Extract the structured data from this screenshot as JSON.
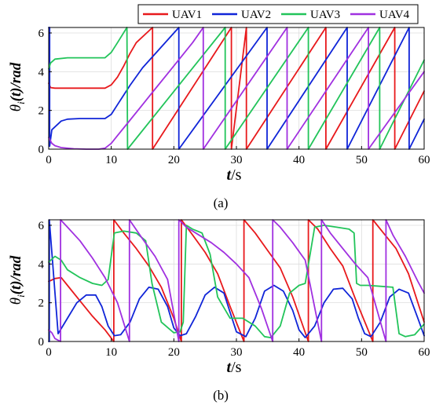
{
  "figure": {
    "legend": [
      {
        "name": "UAV1",
        "color": "#e8191c"
      },
      {
        "name": "UAV2",
        "color": "#1025d8"
      },
      {
        "name": "UAV3",
        "color": "#22c45a"
      },
      {
        "name": "UAV4",
        "color": "#a030e0"
      }
    ]
  },
  "chart_data": [
    {
      "type": "line",
      "panel_label": "(a)",
      "xlabel_italic": "t",
      "xlabel_unit": "/s",
      "ylabel_main": "θ",
      "ylabel_sub": "i",
      "ylabel_rest": "(t)/rad",
      "xlim": [
        0,
        60
      ],
      "ylim": [
        0,
        6.283
      ],
      "xticks": [
        "0",
        "10",
        "20",
        "30",
        "40",
        "50",
        "60"
      ],
      "yticks": [
        "0",
        "2",
        "4",
        "6"
      ],
      "grid": true,
      "legend_position": "top-right, outside",
      "series": [
        {
          "name": "UAV1",
          "color": "#e8191c",
          "x": [
            0,
            0.3,
            1,
            9,
            10,
            11,
            12,
            13,
            14,
            16.6,
            16.6,
            29.2,
            29.2,
            31.6,
            31.6,
            44.3,
            44.3,
            55.3,
            55.3,
            60
          ],
          "y": [
            3.4,
            3.18,
            3.15,
            3.15,
            3.32,
            3.72,
            4.3,
            4.95,
            5.5,
            6.283,
            0,
            6.283,
            0,
            6.283,
            0,
            6.283,
            0,
            6.283,
            0,
            3.0
          ]
        },
        {
          "name": "UAV2",
          "color": "#1025d8",
          "x": [
            0,
            0.15,
            0.15,
            0.5,
            2,
            3,
            5,
            9,
            10,
            11,
            13,
            15,
            20.8,
            20.8,
            34.9,
            34.9,
            47.7,
            47.7,
            57.6,
            57.6,
            60
          ],
          "y": [
            6.283,
            6.283,
            0.15,
            1.0,
            1.45,
            1.55,
            1.58,
            1.58,
            1.8,
            2.3,
            3.3,
            4.2,
            6.283,
            0,
            6.283,
            0,
            6.283,
            0,
            6.283,
            0,
            1.55
          ]
        },
        {
          "name": "UAV3",
          "color": "#22c45a",
          "x": [
            0,
            0.3,
            1,
            3,
            9,
            10,
            11,
            12.5,
            12.6,
            28.2,
            28.2,
            41.5,
            41.5,
            52.9,
            52.9,
            60
          ],
          "y": [
            4.15,
            4.45,
            4.65,
            4.72,
            4.72,
            5.0,
            5.5,
            6.283,
            0,
            6.283,
            0,
            6.283,
            0,
            6.283,
            0,
            4.6
          ]
        },
        {
          "name": "UAV4",
          "color": "#a030e0",
          "x": [
            0,
            0.5,
            1,
            2,
            4,
            6,
            8,
            9,
            10,
            11,
            13,
            15,
            17,
            19,
            21,
            23,
            24.7,
            24.7,
            38.1,
            38.1,
            51.1,
            51.1,
            60
          ],
          "y": [
            0.6,
            0.3,
            0.18,
            0.08,
            0.02,
            0,
            0,
            0.05,
            0.3,
            0.7,
            1.5,
            2.3,
            3.1,
            3.9,
            4.7,
            5.5,
            6.283,
            0,
            6.283,
            0,
            6.283,
            0,
            4.0
          ]
        }
      ]
    },
    {
      "type": "line",
      "panel_label": "(b)",
      "xlabel_italic": "t",
      "xlabel_unit": "/s",
      "ylabel_main": "θ",
      "ylabel_sub": "i",
      "ylabel_rest": "(t)/rad",
      "xlim": [
        0,
        60
      ],
      "ylim": [
        0,
        6.283
      ],
      "xticks": [
        "0",
        "10",
        "20",
        "30",
        "40",
        "50",
        "60"
      ],
      "yticks": [
        "0",
        "2",
        "4",
        "6"
      ],
      "grid": true,
      "series": [
        {
          "name": "UAV1",
          "color": "#e8191c",
          "x": [
            0,
            1,
            2,
            3,
            5,
            7,
            9,
            10.4,
            10.4,
            12,
            14,
            16,
            18,
            20,
            21.2,
            21.2,
            23,
            25,
            27,
            29,
            31.2,
            31.2,
            33,
            35,
            37,
            39,
            41.5,
            41.5,
            43,
            45,
            47,
            49,
            51.8,
            51.8,
            53.5,
            55.5,
            57.5,
            60
          ],
          "y": [
            3.1,
            3.25,
            3.3,
            2.9,
            2.1,
            1.3,
            0.6,
            0,
            6.283,
            5.6,
            4.8,
            3.9,
            2.8,
            1.2,
            0,
            6.283,
            5.5,
            4.6,
            3.5,
            1.8,
            0,
            6.283,
            5.6,
            4.7,
            3.8,
            2.3,
            0,
            6.283,
            5.8,
            4.8,
            3.9,
            2.2,
            0,
            6.283,
            5.6,
            4.8,
            3.5,
            1.0
          ]
        },
        {
          "name": "UAV2",
          "color": "#1025d8",
          "x": [
            0,
            0.1,
            0.1,
            1.5,
            3,
            4.5,
            6,
            7.5,
            8.5,
            9.5,
            10.5,
            11.5,
            13,
            14.5,
            16,
            17.5,
            19,
            20,
            21,
            22,
            23.5,
            25,
            26.5,
            28,
            29,
            30,
            31.5,
            33,
            34.5,
            36,
            37.5,
            39,
            40,
            41,
            42.5,
            44,
            45.5,
            47,
            48.5,
            49.5,
            50.5,
            51.5,
            53,
            54.5,
            56,
            57.5,
            59,
            60
          ],
          "y": [
            0,
            0,
            6.283,
            0.4,
            1.2,
            2.0,
            2.4,
            2.4,
            1.8,
            0.8,
            0.3,
            0.35,
            1.0,
            2.2,
            2.8,
            2.7,
            1.8,
            0.7,
            0.3,
            0.4,
            1.3,
            2.4,
            2.8,
            2.5,
            1.5,
            0.5,
            0.25,
            1.2,
            2.6,
            2.9,
            2.6,
            1.6,
            0.6,
            0.2,
            0.8,
            2.0,
            2.7,
            2.75,
            2.2,
            1.2,
            0.4,
            0.25,
            1.0,
            2.3,
            2.7,
            2.5,
            1.2,
            0.3
          ]
        },
        {
          "name": "UAV3",
          "color": "#22c45a",
          "x": [
            0,
            1,
            2,
            3,
            5,
            7,
            8.5,
            9.5,
            10.5,
            12,
            14,
            15.5,
            16.5,
            18,
            20,
            21,
            21.5,
            22,
            23,
            24.5,
            25.8,
            27,
            29,
            31,
            33,
            34.5,
            35.5,
            37,
            38.5,
            40,
            41,
            42.5,
            44,
            46,
            48,
            48.8,
            49.2,
            49.8,
            51,
            53,
            55,
            56,
            57,
            58.5,
            60
          ],
          "y": [
            4.1,
            4.4,
            4.2,
            3.7,
            3.3,
            3.0,
            2.9,
            3.2,
            5.6,
            5.7,
            5.6,
            5.2,
            3.0,
            1.0,
            0.45,
            0.5,
            1.0,
            6.0,
            5.8,
            5.6,
            4.5,
            2.3,
            1.2,
            1.2,
            0.8,
            0.25,
            0.2,
            0.8,
            2.5,
            2.9,
            3.0,
            5.9,
            6.0,
            5.9,
            5.8,
            5.6,
            3.0,
            2.9,
            2.9,
            2.85,
            2.8,
            0.4,
            0.25,
            0.35,
            0.9
          ]
        },
        {
          "name": "UAV4",
          "color": "#a030e0",
          "x": [
            0,
            0.5,
            1,
            1.9,
            1.9,
            3,
            5,
            7,
            9,
            11,
            12.9,
            12.9,
            15,
            17,
            19,
            20.8,
            20.8,
            22,
            24,
            26,
            28,
            30,
            32,
            34,
            35.8,
            35.8,
            37,
            39,
            41,
            43.6,
            43.6,
            45,
            47,
            49,
            51,
            53.9,
            53.9,
            55,
            57,
            59,
            60
          ],
          "y": [
            0.6,
            0.45,
            0.15,
            0,
            6.283,
            5.9,
            5.2,
            4.3,
            3.3,
            2.0,
            0,
            6.283,
            5.3,
            4.4,
            3.2,
            0,
            6.283,
            5.9,
            5.5,
            5.1,
            4.6,
            4.0,
            3.3,
            1.7,
            0,
            6.283,
            5.9,
            5.1,
            4.2,
            0,
            6.283,
            5.6,
            4.8,
            4.0,
            3.3,
            0,
            6.283,
            5.5,
            4.4,
            3.1,
            2.5
          ]
        }
      ]
    }
  ]
}
